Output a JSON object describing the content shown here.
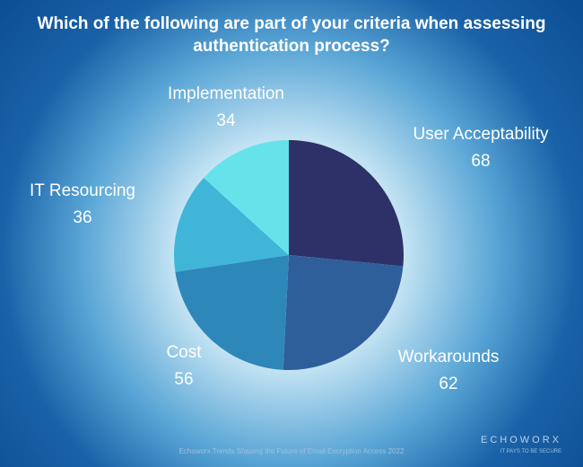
{
  "chart_data": {
    "type": "pie",
    "title": "Which of the following are part of your criteria when assessing authentication process?",
    "categories": [
      "User Acceptability",
      "Workarounds",
      "Cost",
      "IT Resourcing",
      "Implementation"
    ],
    "values": [
      68,
      62,
      56,
      36,
      34
    ],
    "colors": [
      "#2e3167",
      "#2f5f9b",
      "#2e87b9",
      "#40b5d8",
      "#66e3ea"
    ]
  },
  "source": "Echoworx Trends Shaping the Future of Email Encryption Access 2022",
  "logo": "ECHOWORX",
  "tagline": "IT PAYS TO BE SECURE"
}
